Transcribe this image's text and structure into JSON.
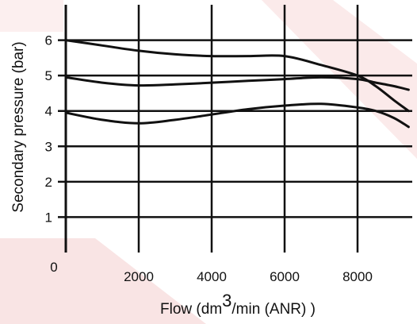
{
  "chart_data": {
    "type": "line",
    "title": "",
    "xlabel_prefix": "Flow (dm",
    "xlabel_sup": "3",
    "xlabel_suffix": "/min (ANR) )",
    "ylabel": "Secondary pressure (bar)",
    "xlim": [
      0,
      9500
    ],
    "ylim": [
      0,
      7
    ],
    "grid": true,
    "legend": "none",
    "origin_label": "0",
    "x_ticks": [
      {
        "value": 2000,
        "label": "2000"
      },
      {
        "value": 4000,
        "label": "4000"
      },
      {
        "value": 6000,
        "label": "6000"
      },
      {
        "value": 8000,
        "label": "8000"
      }
    ],
    "y_ticks": [
      {
        "value": 1,
        "label": "1"
      },
      {
        "value": 2,
        "label": "2"
      },
      {
        "value": 3,
        "label": "3"
      },
      {
        "value": 4,
        "label": "4"
      },
      {
        "value": 5,
        "label": "5"
      },
      {
        "value": 6,
        "label": "6"
      }
    ],
    "series": [
      {
        "x": [
          0,
          1000,
          2000,
          3000,
          4000,
          5000,
          6000,
          7000,
          8000,
          8500,
          9000,
          9400
        ],
        "y": [
          6.0,
          5.85,
          5.7,
          5.6,
          5.55,
          5.55,
          5.55,
          5.3,
          5.0,
          4.7,
          4.3,
          4.0
        ]
      },
      {
        "x": [
          0,
          1000,
          2000,
          3000,
          4000,
          5000,
          6000,
          7000,
          8000,
          8500,
          9000,
          9400
        ],
        "y": [
          4.95,
          4.8,
          4.72,
          4.75,
          4.8,
          4.85,
          4.9,
          4.95,
          4.9,
          4.8,
          4.7,
          4.6
        ]
      },
      {
        "x": [
          0,
          1000,
          2000,
          3000,
          4000,
          5000,
          6000,
          7000,
          8000,
          8500,
          9000,
          9400
        ],
        "y": [
          3.95,
          3.75,
          3.65,
          3.75,
          3.9,
          4.05,
          4.15,
          4.2,
          4.1,
          4.0,
          3.8,
          3.55
        ]
      }
    ],
    "colors": {
      "line": "#111111",
      "grid": "#111111",
      "watermark": "#f6dada"
    }
  }
}
